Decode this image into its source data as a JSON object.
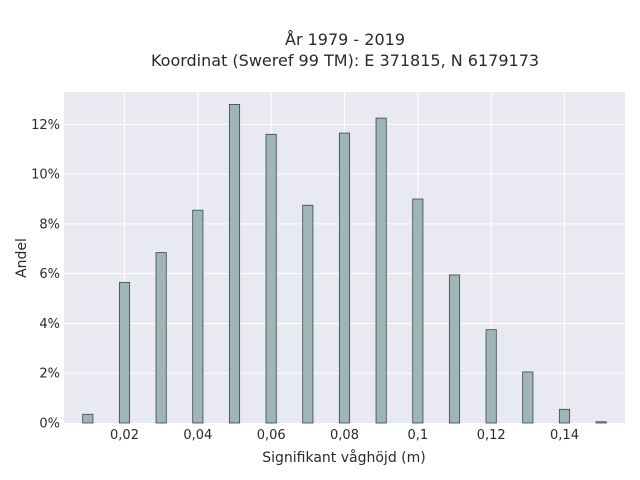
{
  "chart_data": {
    "type": "bar",
    "title_lines": [
      "År 1979 - 2019",
      "Koordinat (Sweref 99 TM): E 371815, N 6179173"
    ],
    "xlabel": "Signifikant våghöjd (m)",
    "ylabel": "Andel",
    "x": [
      0.01,
      0.02,
      0.03,
      0.04,
      0.05,
      0.06,
      0.07,
      0.08,
      0.09,
      0.1,
      0.11,
      0.12,
      0.13,
      0.14,
      0.15
    ],
    "values": [
      0.35,
      5.65,
      6.85,
      8.55,
      12.8,
      11.6,
      8.75,
      11.65,
      12.25,
      9.0,
      5.95,
      3.75,
      2.05,
      0.55,
      0.05
    ],
    "xlim": [
      0.0035,
      0.1565
    ],
    "ylim": [
      0,
      13.3
    ],
    "x_ticks": [
      0.02,
      0.04,
      0.06,
      0.08,
      0.1,
      0.12,
      0.14
    ],
    "x_tick_labels": [
      "0,02",
      "0,04",
      "0,06",
      "0,08",
      "0,1",
      "0,12",
      "0,14"
    ],
    "y_ticks": [
      0,
      2,
      4,
      6,
      8,
      10,
      12
    ],
    "y_tick_labels": [
      "0%",
      "2%",
      "4%",
      "6%",
      "8%",
      "10%",
      "12%"
    ],
    "bar_width": 0.0028,
    "grid": true,
    "colors": {
      "bar_fill": "#9fb5b7",
      "bar_stroke": "#37474a",
      "plot_bg": "#e8e9f1",
      "grid": "#ffffff"
    }
  }
}
